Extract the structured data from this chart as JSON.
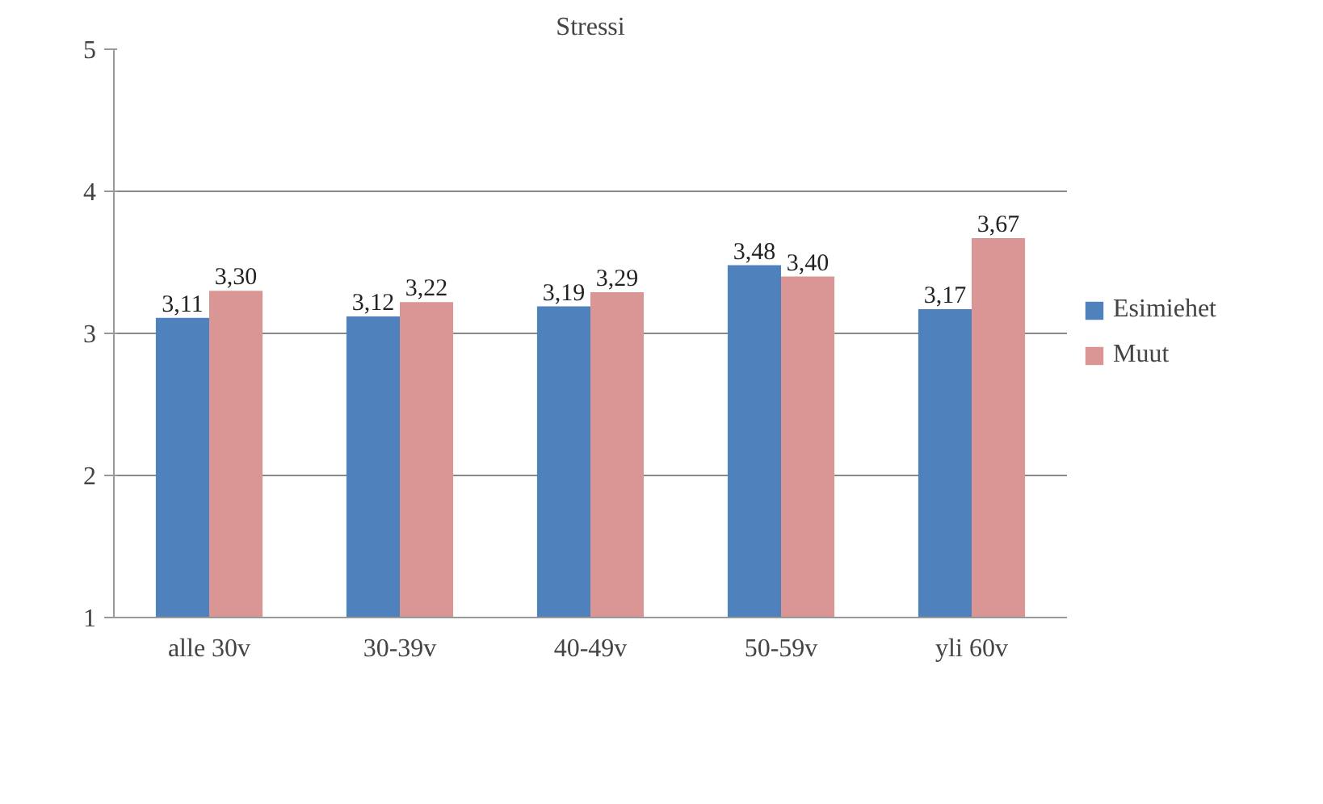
{
  "chart_data": {
    "type": "bar",
    "title": "Stressi",
    "categories": [
      "alle 30v",
      "30-39v",
      "40-49v",
      "50-59v",
      "yli 60v"
    ],
    "series": [
      {
        "name": "Esimiehet",
        "color": "#4f81bd",
        "values": [
          3.11,
          3.12,
          3.19,
          3.48,
          3.17
        ],
        "value_labels": [
          "3,11",
          "3,12",
          "3,19",
          "3,48",
          "3,17"
        ]
      },
      {
        "name": "Muut",
        "color": "#d99694",
        "values": [
          3.3,
          3.22,
          3.29,
          3.4,
          3.67
        ],
        "value_labels": [
          "3,30",
          "3,22",
          "3,29",
          "3,40",
          "3,67"
        ]
      }
    ],
    "ylim": [
      1,
      5
    ],
    "yticks": [
      1,
      2,
      3,
      4,
      5
    ],
    "grid": "y",
    "legend": "right"
  }
}
